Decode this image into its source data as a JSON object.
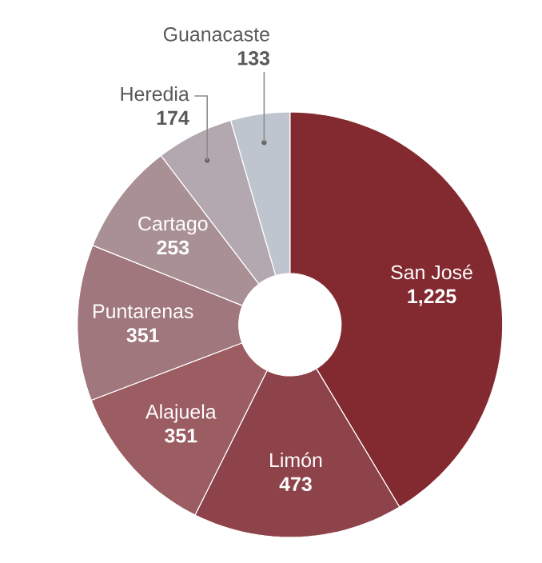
{
  "chart_data": {
    "type": "donut",
    "categories": [
      "San José",
      "Limón",
      "Alajuela",
      "Puntarenas",
      "Cartago",
      "Heredia",
      "Guanacaste"
    ],
    "values": [
      1225,
      473,
      351,
      351,
      253,
      174,
      133
    ],
    "value_labels": [
      "1,225",
      "473",
      "351",
      "351",
      "253",
      "174",
      "133"
    ],
    "colors": [
      "#832a30",
      "#8e434a",
      "#9b5c62",
      "#a0777c",
      "#a99095",
      "#b4a8b0",
      "#bec5ce"
    ],
    "legend": false
  }
}
